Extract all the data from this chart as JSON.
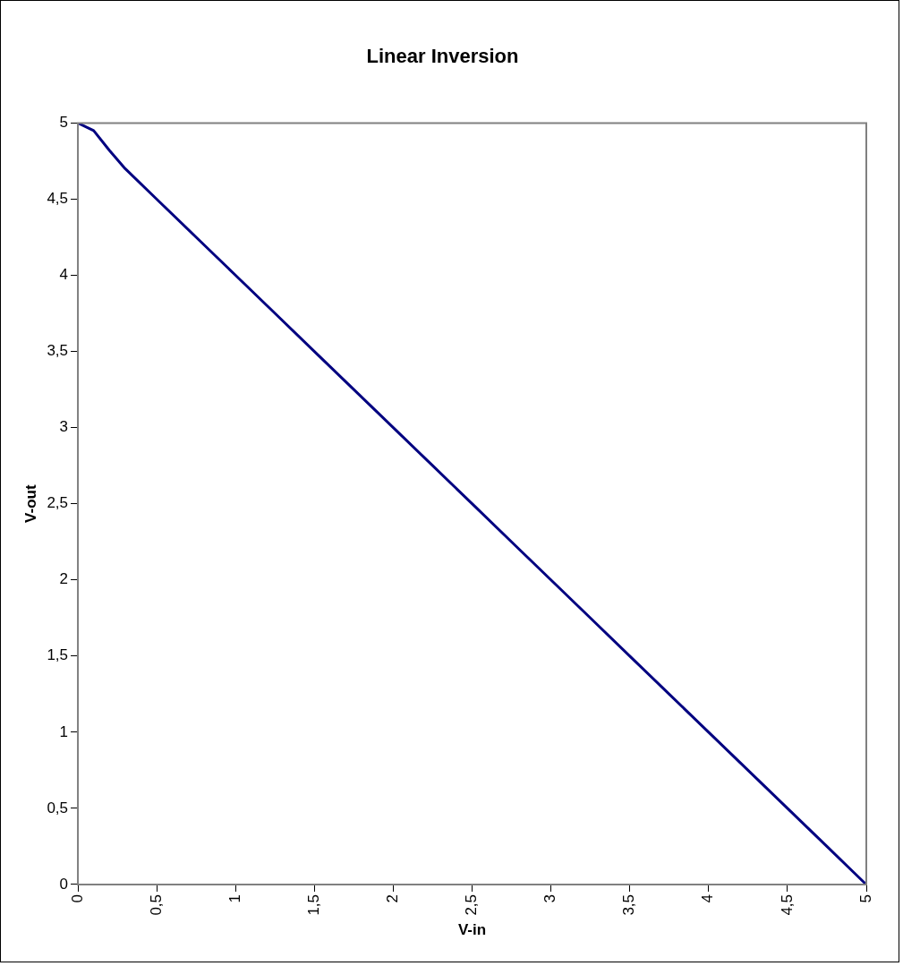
{
  "chart_data": {
    "type": "line",
    "title": "Linear Inversion",
    "xlabel": "V-in",
    "ylabel": "V-out",
    "x": [
      0,
      0.1,
      0.2,
      0.3,
      0.5,
      0.75,
      1,
      1.25,
      1.5,
      1.75,
      2,
      2.25,
      2.5,
      2.75,
      3,
      3.25,
      3.5,
      3.75,
      4,
      4.25,
      4.5,
      4.75,
      4.9,
      5
    ],
    "series": [
      {
        "color": "#000080",
        "values": [
          5,
          4.95,
          4.82,
          4.7,
          4.5,
          4.25,
          4,
          3.75,
          3.5,
          3.25,
          3,
          2.75,
          2.5,
          2.25,
          2,
          1.75,
          1.5,
          1.25,
          1,
          0.75,
          0.5,
          0.25,
          0.1,
          0
        ]
      }
    ],
    "xlim": [
      0,
      5
    ],
    "ylim": [
      0,
      5
    ],
    "xticks": [
      0,
      {
        "value": 0.5,
        "label": "0,5"
      },
      1,
      {
        "value": 1.5,
        "label": "1,5"
      },
      2,
      {
        "value": 2.5,
        "label": "2,5"
      },
      3,
      {
        "value": 3.5,
        "label": "3,5"
      },
      4,
      {
        "value": 4.5,
        "label": "4,5"
      },
      5
    ],
    "yticks": [
      0,
      {
        "value": 0.5,
        "label": "0,5"
      },
      1,
      {
        "value": 1.5,
        "label": "1,5"
      },
      2,
      {
        "value": 2.5,
        "label": "2,5"
      },
      3,
      {
        "value": 3.5,
        "label": "3,5"
      },
      4,
      {
        "value": 4.5,
        "label": "4,5"
      },
      5
    ],
    "grid": false,
    "legend": false,
    "marker": "none",
    "line_style": "solid"
  }
}
